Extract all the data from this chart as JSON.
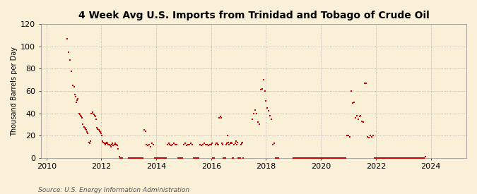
{
  "title": "4 Week Avg U.S. Imports from Trinidad and Tobago of Crude Oil",
  "ylabel": "Thousand Barrels per Day",
  "source": "Source: U.S. Energy Information Administration",
  "background_color": "#faefd7",
  "plot_bg_color": "#faefd7",
  "marker_color": "#cc0000",
  "ylim": [
    0,
    120
  ],
  "yticks": [
    0,
    20,
    40,
    60,
    80,
    100,
    120
  ],
  "xlim_start": 2009.8,
  "xlim_end": 2025.3,
  "xticks": [
    2010,
    2012,
    2014,
    2016,
    2018,
    2020,
    2022,
    2024
  ],
  "data": [
    [
      2010.75,
      107
    ],
    [
      2010.8,
      95
    ],
    [
      2010.85,
      88
    ],
    [
      2010.9,
      78
    ],
    [
      2010.95,
      65
    ],
    [
      2011.0,
      64
    ],
    [
      2011.03,
      57
    ],
    [
      2011.06,
      55
    ],
    [
      2011.09,
      50
    ],
    [
      2011.12,
      52
    ],
    [
      2011.15,
      53
    ],
    [
      2011.18,
      40
    ],
    [
      2011.21,
      39
    ],
    [
      2011.24,
      38
    ],
    [
      2011.27,
      37
    ],
    [
      2011.3,
      36
    ],
    [
      2011.33,
      30
    ],
    [
      2011.36,
      28
    ],
    [
      2011.39,
      27
    ],
    [
      2011.42,
      26
    ],
    [
      2011.45,
      25
    ],
    [
      2011.48,
      23
    ],
    [
      2011.51,
      22
    ],
    [
      2011.54,
      14
    ],
    [
      2011.57,
      13
    ],
    [
      2011.6,
      15
    ],
    [
      2011.63,
      40
    ],
    [
      2011.66,
      40
    ],
    [
      2011.69,
      41
    ],
    [
      2011.72,
      39
    ],
    [
      2011.75,
      38
    ],
    [
      2011.78,
      37
    ],
    [
      2011.81,
      35
    ],
    [
      2011.84,
      27
    ],
    [
      2011.87,
      26
    ],
    [
      2011.9,
      25
    ],
    [
      2011.93,
      24
    ],
    [
      2011.96,
      23
    ],
    [
      2011.99,
      22
    ],
    [
      2012.02,
      20
    ],
    [
      2012.05,
      15
    ],
    [
      2012.08,
      14
    ],
    [
      2012.11,
      13
    ],
    [
      2012.14,
      12
    ],
    [
      2012.17,
      13
    ],
    [
      2012.2,
      14
    ],
    [
      2012.23,
      13
    ],
    [
      2012.26,
      12
    ],
    [
      2012.29,
      12
    ],
    [
      2012.32,
      11
    ],
    [
      2012.35,
      10
    ],
    [
      2012.38,
      12
    ],
    [
      2012.41,
      13
    ],
    [
      2012.44,
      11
    ],
    [
      2012.47,
      12
    ],
    [
      2012.5,
      13
    ],
    [
      2012.53,
      12
    ],
    [
      2012.56,
      12
    ],
    [
      2012.59,
      11
    ],
    [
      2012.62,
      8
    ],
    [
      2012.65,
      1
    ],
    [
      2012.68,
      0
    ],
    [
      2012.71,
      0
    ],
    [
      2012.75,
      0
    ],
    [
      2013.0,
      0
    ],
    [
      2013.05,
      0
    ],
    [
      2013.1,
      0
    ],
    [
      2013.15,
      0
    ],
    [
      2013.2,
      0
    ],
    [
      2013.25,
      0
    ],
    [
      2013.3,
      0
    ],
    [
      2013.35,
      0
    ],
    [
      2013.4,
      0
    ],
    [
      2013.45,
      0
    ],
    [
      2013.5,
      0
    ],
    [
      2013.55,
      25
    ],
    [
      2013.6,
      24
    ],
    [
      2013.65,
      12
    ],
    [
      2013.7,
      11
    ],
    [
      2013.75,
      12
    ],
    [
      2013.8,
      10
    ],
    [
      2013.85,
      13
    ],
    [
      2013.9,
      12
    ],
    [
      2013.95,
      0
    ],
    [
      2014.0,
      0
    ],
    [
      2014.05,
      0
    ],
    [
      2014.1,
      0
    ],
    [
      2014.15,
      0
    ],
    [
      2014.2,
      0
    ],
    [
      2014.25,
      0
    ],
    [
      2014.3,
      0
    ],
    [
      2014.35,
      0
    ],
    [
      2014.4,
      12
    ],
    [
      2014.45,
      13
    ],
    [
      2014.5,
      12
    ],
    [
      2014.55,
      11
    ],
    [
      2014.6,
      12
    ],
    [
      2014.65,
      13
    ],
    [
      2014.7,
      12
    ],
    [
      2014.75,
      12
    ],
    [
      2014.8,
      0
    ],
    [
      2014.85,
      0
    ],
    [
      2014.9,
      0
    ],
    [
      2014.95,
      0
    ],
    [
      2015.0,
      12
    ],
    [
      2015.05,
      13
    ],
    [
      2015.1,
      11
    ],
    [
      2015.15,
      12
    ],
    [
      2015.2,
      12
    ],
    [
      2015.25,
      13
    ],
    [
      2015.3,
      12
    ],
    [
      2015.35,
      0
    ],
    [
      2015.4,
      0
    ],
    [
      2015.45,
      0
    ],
    [
      2015.5,
      0
    ],
    [
      2015.55,
      0
    ],
    [
      2015.6,
      12
    ],
    [
      2015.65,
      11
    ],
    [
      2015.7,
      12
    ],
    [
      2015.75,
      13
    ],
    [
      2015.8,
      12
    ],
    [
      2015.85,
      12
    ],
    [
      2015.9,
      11
    ],
    [
      2015.95,
      12
    ],
    [
      2016.0,
      12
    ],
    [
      2016.03,
      13
    ],
    [
      2016.06,
      0
    ],
    [
      2016.09,
      0
    ],
    [
      2016.12,
      0
    ],
    [
      2016.15,
      12
    ],
    [
      2016.18,
      13
    ],
    [
      2016.21,
      13
    ],
    [
      2016.24,
      12
    ],
    [
      2016.27,
      12
    ],
    [
      2016.3,
      36
    ],
    [
      2016.33,
      37
    ],
    [
      2016.36,
      36
    ],
    [
      2016.39,
      13
    ],
    [
      2016.42,
      12
    ],
    [
      2016.45,
      0
    ],
    [
      2016.48,
      0
    ],
    [
      2016.51,
      0
    ],
    [
      2016.54,
      12
    ],
    [
      2016.57,
      13
    ],
    [
      2016.6,
      20
    ],
    [
      2016.63,
      14
    ],
    [
      2016.66,
      12
    ],
    [
      2016.69,
      13
    ],
    [
      2016.72,
      14
    ],
    [
      2016.75,
      13
    ],
    [
      2016.78,
      0
    ],
    [
      2016.81,
      0
    ],
    [
      2016.84,
      12
    ],
    [
      2016.87,
      13
    ],
    [
      2016.9,
      15
    ],
    [
      2016.93,
      12
    ],
    [
      2016.96,
      14
    ],
    [
      2016.99,
      0
    ],
    [
      2017.02,
      0
    ],
    [
      2017.05,
      0
    ],
    [
      2017.08,
      12
    ],
    [
      2017.11,
      13
    ],
    [
      2017.14,
      14
    ],
    [
      2017.17,
      0
    ],
    [
      2017.5,
      35
    ],
    [
      2017.55,
      40
    ],
    [
      2017.6,
      43
    ],
    [
      2017.65,
      40
    ],
    [
      2017.7,
      32
    ],
    [
      2017.75,
      30
    ],
    [
      2017.8,
      61
    ],
    [
      2017.85,
      62
    ],
    [
      2017.9,
      70
    ],
    [
      2017.95,
      60
    ],
    [
      2018.0,
      51
    ],
    [
      2018.05,
      45
    ],
    [
      2018.1,
      42
    ],
    [
      2018.15,
      38
    ],
    [
      2018.2,
      35
    ],
    [
      2018.25,
      12
    ],
    [
      2018.3,
      13
    ],
    [
      2018.35,
      0
    ],
    [
      2018.4,
      0
    ],
    [
      2018.45,
      0
    ],
    [
      2019.0,
      0
    ],
    [
      2019.05,
      0
    ],
    [
      2019.1,
      0
    ],
    [
      2019.15,
      0
    ],
    [
      2019.2,
      0
    ],
    [
      2019.25,
      0
    ],
    [
      2019.3,
      0
    ],
    [
      2019.35,
      0
    ],
    [
      2019.4,
      0
    ],
    [
      2019.45,
      0
    ],
    [
      2019.5,
      0
    ],
    [
      2019.55,
      0
    ],
    [
      2019.6,
      0
    ],
    [
      2019.65,
      0
    ],
    [
      2019.7,
      0
    ],
    [
      2019.75,
      0
    ],
    [
      2019.8,
      0
    ],
    [
      2019.85,
      0
    ],
    [
      2019.9,
      0
    ],
    [
      2019.95,
      0
    ],
    [
      2020.0,
      0
    ],
    [
      2020.05,
      0
    ],
    [
      2020.1,
      0
    ],
    [
      2020.15,
      0
    ],
    [
      2020.2,
      0
    ],
    [
      2020.25,
      0
    ],
    [
      2020.3,
      0
    ],
    [
      2020.35,
      0
    ],
    [
      2020.4,
      0
    ],
    [
      2020.45,
      0
    ],
    [
      2020.5,
      0
    ],
    [
      2020.55,
      0
    ],
    [
      2020.6,
      0
    ],
    [
      2020.65,
      0
    ],
    [
      2020.7,
      0
    ],
    [
      2020.75,
      0
    ],
    [
      2020.8,
      0
    ],
    [
      2020.85,
      0
    ],
    [
      2020.9,
      0
    ],
    [
      2020.95,
      20
    ],
    [
      2021.0,
      20
    ],
    [
      2021.05,
      19
    ],
    [
      2021.1,
      60
    ],
    [
      2021.15,
      49
    ],
    [
      2021.2,
      50
    ],
    [
      2021.25,
      36
    ],
    [
      2021.3,
      38
    ],
    [
      2021.35,
      35
    ],
    [
      2021.4,
      37
    ],
    [
      2021.45,
      38
    ],
    [
      2021.5,
      33
    ],
    [
      2021.55,
      32
    ],
    [
      2021.6,
      67
    ],
    [
      2021.65,
      67
    ],
    [
      2021.7,
      19
    ],
    [
      2021.75,
      18
    ],
    [
      2021.8,
      20
    ],
    [
      2021.85,
      19
    ],
    [
      2021.9,
      20
    ],
    [
      2021.95,
      0
    ],
    [
      2022.0,
      0
    ],
    [
      2022.05,
      0
    ],
    [
      2022.1,
      0
    ],
    [
      2022.15,
      0
    ],
    [
      2022.2,
      0
    ],
    [
      2022.25,
      0
    ],
    [
      2022.3,
      0
    ],
    [
      2022.35,
      0
    ],
    [
      2022.4,
      0
    ],
    [
      2022.45,
      0
    ],
    [
      2022.5,
      0
    ],
    [
      2022.55,
      0
    ],
    [
      2022.6,
      0
    ],
    [
      2022.65,
      0
    ],
    [
      2022.7,
      0
    ],
    [
      2022.75,
      0
    ],
    [
      2022.8,
      0
    ],
    [
      2022.85,
      0
    ],
    [
      2022.9,
      0
    ],
    [
      2022.95,
      0
    ],
    [
      2023.0,
      0
    ],
    [
      2023.05,
      0
    ],
    [
      2023.1,
      0
    ],
    [
      2023.15,
      0
    ],
    [
      2023.2,
      0
    ],
    [
      2023.25,
      0
    ],
    [
      2023.3,
      0
    ],
    [
      2023.35,
      0
    ],
    [
      2023.4,
      0
    ],
    [
      2023.45,
      0
    ],
    [
      2023.5,
      0
    ],
    [
      2023.55,
      0
    ],
    [
      2023.6,
      0
    ],
    [
      2023.65,
      0
    ],
    [
      2023.7,
      0
    ],
    [
      2023.75,
      0
    ],
    [
      2023.8,
      1
    ]
  ]
}
